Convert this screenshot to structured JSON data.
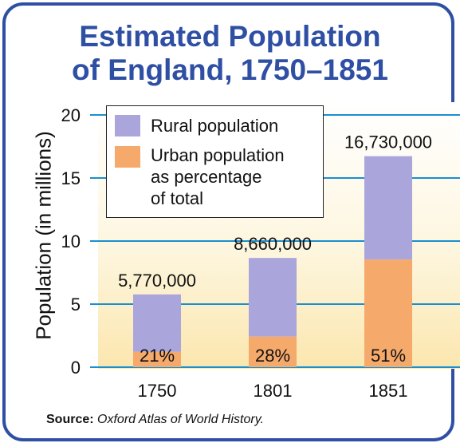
{
  "title_line1": "Estimated Population",
  "title_line2": "of England, 1750–1851",
  "source_label": "Source:",
  "source_text": "Oxford Atlas of World History.",
  "colors": {
    "rural": "#aaa6dc",
    "urban": "#f5a96a",
    "title": "#2e4fa3",
    "grid": "#1a8fcf"
  },
  "chart_data": {
    "type": "bar",
    "categories": [
      "1750",
      "1801",
      "1851"
    ],
    "totals": [
      5.77,
      8.66,
      16.73
    ],
    "total_labels": [
      "5,770,000",
      "8,660,000",
      "16,730,000"
    ],
    "urban_percent": [
      21,
      28,
      51
    ],
    "urban_labels": [
      "21%",
      "28%",
      "51%"
    ],
    "ylabel": "Population (in millions)",
    "xlabel": "",
    "ylim": [
      0,
      20
    ],
    "yticks": [
      0,
      5,
      10,
      15,
      20
    ],
    "legend": {
      "position": "top-left",
      "rural": "Rural population",
      "urban_line1": "Urban population",
      "urban_line2": "as percentage",
      "urban_line3": "of total"
    },
    "grid": true
  }
}
